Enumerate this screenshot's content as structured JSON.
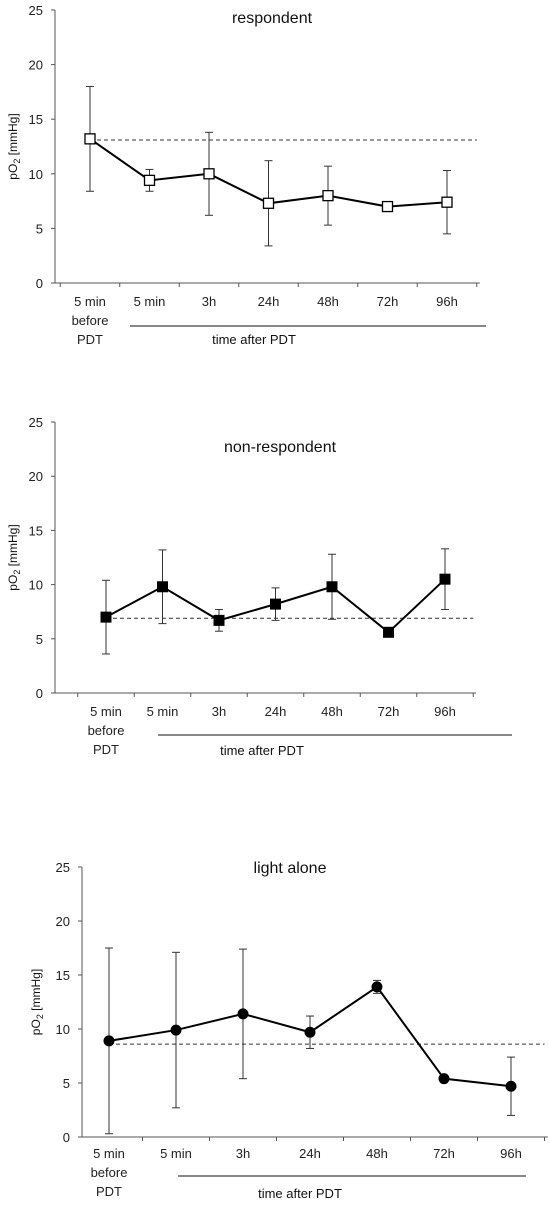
{
  "chart_data": [
    {
      "type": "line",
      "title": "respondent",
      "ylabel_main": "pO",
      "ylabel_sub": "2",
      "ylabel_unit": " [mmHg]",
      "xlabel": "time after PDT",
      "categories": [
        "5 min",
        "5 min",
        "3h",
        "24h",
        "48h",
        "72h",
        "96h"
      ],
      "first_category_extra": [
        "before",
        "PDT"
      ],
      "y_ticks": [
        "0",
        "5",
        "10",
        "15",
        "20",
        "25"
      ],
      "ylim": [
        0,
        25
      ],
      "marker": "open-square",
      "values": [
        13.2,
        9.4,
        10.0,
        7.3,
        8.0,
        7.0,
        7.4
      ],
      "error": [
        4.8,
        1.0,
        3.8,
        3.9,
        2.7,
        0.4,
        2.9
      ],
      "reference_line": 13.1
    },
    {
      "type": "line",
      "title": "non-respondent",
      "ylabel_main": "pO",
      "ylabel_sub": "2",
      "ylabel_unit": " [mmHg]",
      "xlabel": "time after  PDT",
      "categories": [
        "5 min",
        "5 min",
        "3h",
        "24h",
        "48h",
        "72h",
        "96h"
      ],
      "first_category_extra": [
        "before",
        "PDT"
      ],
      "y_ticks": [
        "0",
        "5",
        "10",
        "15",
        "20",
        "25"
      ],
      "ylim": [
        0,
        25
      ],
      "marker": "filled-square",
      "values": [
        7.0,
        9.8,
        6.7,
        8.2,
        9.8,
        5.6,
        10.5
      ],
      "error": [
        3.4,
        3.4,
        1.0,
        1.5,
        3.0,
        0.3,
        2.8
      ],
      "reference_line": 6.9
    },
    {
      "type": "line",
      "title": "light alone",
      "ylabel_main": "pO",
      "ylabel_sub": "2",
      "ylabel_unit": " [mmHg]",
      "xlabel": "time after PDT",
      "categories": [
        "5 min",
        "5 min",
        "3h",
        "24h",
        "48h",
        "72h",
        "96h"
      ],
      "first_category_extra": [
        "before",
        "PDT"
      ],
      "y_ticks": [
        "0",
        "5",
        "10",
        "15",
        "20",
        "25"
      ],
      "ylim": [
        0,
        25
      ],
      "marker": "filled-circle",
      "values": [
        8.9,
        9.9,
        11.4,
        9.7,
        13.9,
        5.4,
        4.7
      ],
      "error": [
        8.6,
        7.2,
        6.0,
        1.5,
        0.6,
        0.2,
        2.7
      ],
      "reference_line": 8.6
    }
  ]
}
